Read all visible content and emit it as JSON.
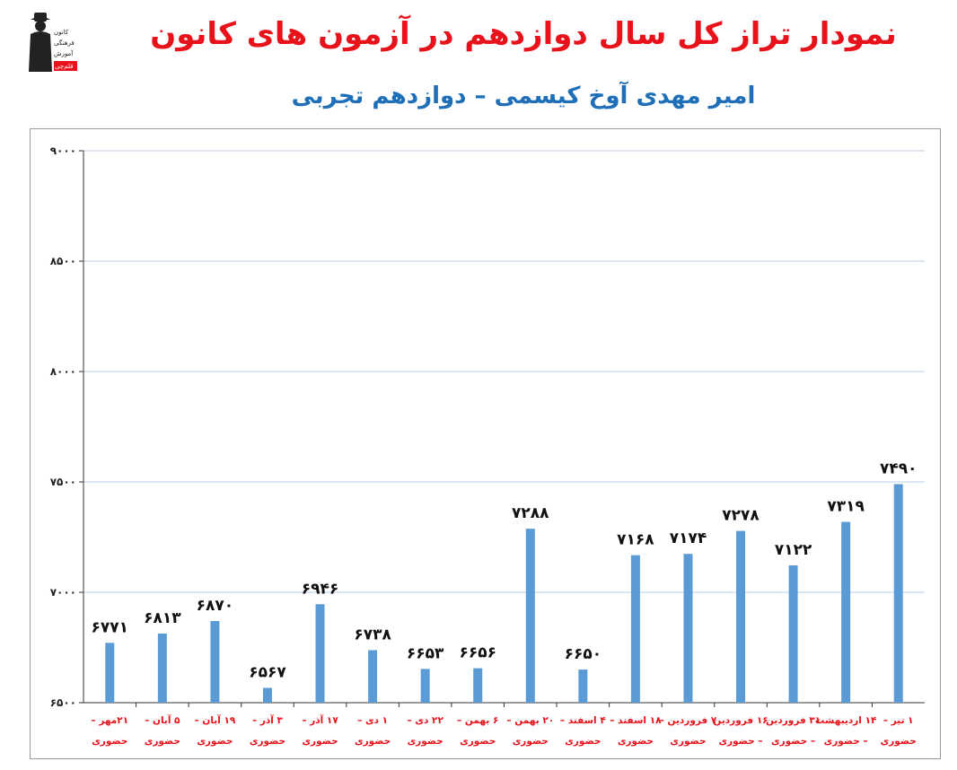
{
  "header": {
    "title": "نمودار تراز کل سال دوازدهم در آزمون های کانون",
    "subtitle": "امیر مهدی آوخ کیسمی – دوازدهم تجربی"
  },
  "logo": {
    "lines": [
      "کانون",
      "فرهنگی",
      "آموزش",
      "قلم‌چی"
    ]
  },
  "chart_data": {
    "type": "bar",
    "title": "نمودار تراز کل سال دوازدهم در آزمون های کانون",
    "subtitle": "امیر مهدی آوخ کیسمی – دوازدهم تجربی",
    "ylim": [
      6500,
      9000
    ],
    "yticks": [
      6500,
      7000,
      7500,
      8000,
      8500,
      9000
    ],
    "ytick_labels": [
      "۶۵۰۰",
      "۷۰۰۰",
      "۷۵۰۰",
      "۸۰۰۰",
      "۸۵۰۰",
      "۹۰۰۰"
    ],
    "grid": true,
    "bar_color": "#5b9bd5",
    "label_color": "#e8121a",
    "categories": [
      [
        "۲۱مهر –",
        "حضوری"
      ],
      [
        "۵ آبان –",
        "حضوری"
      ],
      [
        "۱۹ آبان –",
        "حضوری"
      ],
      [
        "۳ آذر –",
        "حضوری"
      ],
      [
        "۱۷ آذر –",
        "حضوری"
      ],
      [
        "۱ دی –",
        "حضوری"
      ],
      [
        "۲۲ دی –",
        "حضوری"
      ],
      [
        "۶ بهمن –",
        "حضوری"
      ],
      [
        "۲۰ بهمن –",
        "حضوری"
      ],
      [
        "۴ اسفند –",
        "حضوری"
      ],
      [
        "۱۸ اسفند –",
        "حضوری"
      ],
      [
        "۷ فروردین –",
        "حضوری"
      ],
      [
        "۱۶ فروردین",
        "– حضوری"
      ],
      [
        "۳۱ فروردین",
        "– حضوری"
      ],
      [
        "۱۴ اردیبهشت",
        "– حضوری"
      ],
      [
        "۱ تیر –",
        "حضوری"
      ]
    ],
    "values": [
      6771,
      6813,
      6870,
      6567,
      6946,
      6738,
      6653,
      6656,
      7288,
      6650,
      7168,
      7174,
      7278,
      7122,
      7319,
      7490
    ],
    "value_labels": [
      "۶۷۷۱",
      "۶۸۱۳",
      "۶۸۷۰",
      "۶۵۶۷",
      "۶۹۴۶",
      "۶۷۳۸",
      "۶۶۵۳",
      "۶۶۵۶",
      "۷۲۸۸",
      "۶۶۵۰",
      "۷۱۶۸",
      "۷۱۷۴",
      "۷۲۷۸",
      "۷۱۲۲",
      "۷۳۱۹",
      "۷۴۹۰"
    ]
  }
}
